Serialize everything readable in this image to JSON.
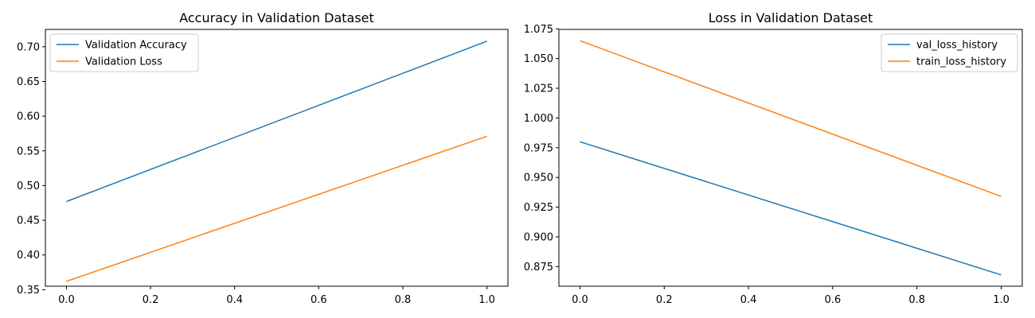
{
  "chart_data": [
    {
      "type": "line",
      "title": "Accuracy in Validation Dataset",
      "xlabel": "",
      "ylabel": "",
      "x": [
        0.0,
        1.0
      ],
      "xlim": [
        -0.05,
        1.05
      ],
      "ylim": [
        0.355,
        0.725
      ],
      "xticks": [
        "0.0",
        "0.2",
        "0.4",
        "0.6",
        "0.8",
        "1.0"
      ],
      "yticks": [
        "0.35",
        "0.40",
        "0.45",
        "0.50",
        "0.55",
        "0.60",
        "0.65",
        "0.70"
      ],
      "grid": false,
      "legend_position": "upper-left",
      "series": [
        {
          "name": "Validation Accuracy",
          "color": "#1f77b4",
          "values": [
            0.477,
            0.708
          ]
        },
        {
          "name": "Validation Loss",
          "color": "#ff7f0e",
          "values": [
            0.362,
            0.571
          ]
        }
      ]
    },
    {
      "type": "line",
      "title": "Loss in Validation Dataset",
      "xlabel": "",
      "ylabel": "",
      "x": [
        0.0,
        1.0
      ],
      "xlim": [
        -0.05,
        1.05
      ],
      "ylim": [
        0.8585,
        1.0745
      ],
      "xticks": [
        "0.0",
        "0.2",
        "0.4",
        "0.6",
        "0.8",
        "1.0"
      ],
      "yticks": [
        "0.875",
        "0.900",
        "0.925",
        "0.950",
        "0.975",
        "1.000",
        "1.025",
        "1.050",
        "1.075"
      ],
      "grid": false,
      "legend_position": "upper-right",
      "series": [
        {
          "name": "val_loss_history",
          "color": "#1f77b4",
          "values": [
            0.98,
            0.868
          ]
        },
        {
          "name": "train_loss_history",
          "color": "#ff7f0e",
          "values": [
            1.065,
            0.934
          ]
        }
      ]
    }
  ]
}
